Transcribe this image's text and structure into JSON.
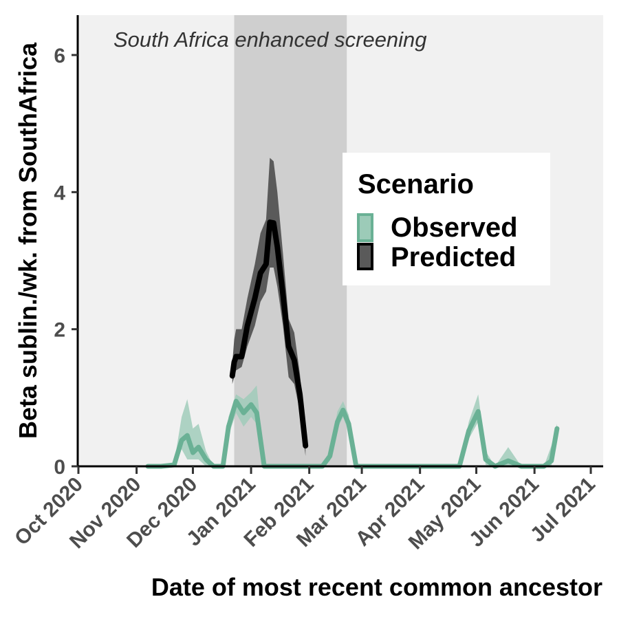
{
  "chart_data": {
    "type": "line",
    "title": "",
    "xlabel": "Date of most recent common ancestor",
    "ylabel": "Beta sublin./wk. from SouthAfrica",
    "x_ticks": [
      "Oct 2020",
      "Nov 2020",
      "Dec 2020",
      "Jan 2021",
      "Feb 2021",
      "Mar 2021",
      "Apr 2021",
      "May 2021",
      "Jun 2021",
      "Jul 2021"
    ],
    "y_ticks": [
      "0",
      "2",
      "4",
      "6"
    ],
    "ylim": [
      0,
      6.6
    ],
    "xlim": [
      "2020-10-01",
      "2021-07-01"
    ],
    "grid": false,
    "legend_placement": "right",
    "annotation": {
      "text": "South Africa enhanced screening",
      "shaded_period": [
        "2020-12-23",
        "2021-02-21"
      ]
    },
    "legend": {
      "title": "Scenario",
      "entries": [
        "Observed",
        "Predicted"
      ]
    },
    "colors": {
      "observed": "#6ab195",
      "predicted": "#000000",
      "predicted_band": "#5a5a5a",
      "panel_bg": "#f1f1f1",
      "shade": "#cfcfcf"
    },
    "series": [
      {
        "name": "Observed",
        "x": [
          "2020-11-07",
          "2020-11-14",
          "2020-11-21",
          "2020-11-25",
          "2020-11-28",
          "2020-12-01",
          "2020-12-04",
          "2020-12-08",
          "2020-12-12",
          "2020-12-17",
          "2020-12-20",
          "2020-12-24",
          "2020-12-28",
          "2021-01-01",
          "2021-01-04",
          "2021-01-08",
          "2021-01-12",
          "2021-01-18",
          "2021-01-24",
          "2021-02-01",
          "2021-02-08",
          "2021-02-12",
          "2021-02-16",
          "2021-02-19",
          "2021-02-22",
          "2021-02-26",
          "2021-03-05",
          "2021-03-15",
          "2021-03-25",
          "2021-04-05",
          "2021-04-15",
          "2021-04-22",
          "2021-04-27",
          "2021-05-02",
          "2021-05-06",
          "2021-05-11",
          "2021-05-18",
          "2021-05-25",
          "2021-06-01",
          "2021-06-06",
          "2021-06-10",
          "2021-06-13"
        ],
        "values": [
          0,
          0,
          0.02,
          0.38,
          0.45,
          0.2,
          0.28,
          0.1,
          0,
          0,
          0.58,
          0.95,
          0.78,
          0.9,
          0.78,
          0,
          0,
          0,
          0,
          0,
          0,
          0.15,
          0.65,
          0.82,
          0.62,
          0,
          0,
          0,
          0,
          0,
          0,
          0,
          0.52,
          0.8,
          0.1,
          0,
          0.08,
          0,
          0,
          0,
          0.08,
          0.55
        ],
        "lower": [
          0,
          0,
          0,
          0.25,
          0.1,
          0.1,
          0.1,
          0,
          0,
          0,
          0.45,
          0.78,
          0.58,
          0.72,
          0.62,
          0,
          0,
          0,
          0,
          0,
          0,
          0.08,
          0.55,
          0.72,
          0.5,
          0,
          0,
          0,
          0,
          0,
          0,
          0,
          0.4,
          0.65,
          0.02,
          0,
          0,
          0,
          0,
          0,
          0,
          0.45
        ],
        "upper": [
          0,
          0,
          0.05,
          0.72,
          0.98,
          0.55,
          0.62,
          0.22,
          0,
          0,
          0.72,
          1.05,
          0.98,
          1.08,
          1.18,
          0,
          0,
          0,
          0,
          0,
          0,
          0.22,
          0.8,
          0.95,
          0.75,
          0,
          0,
          0,
          0,
          0,
          0,
          0,
          0.65,
          1.05,
          0.22,
          0,
          0.28,
          0,
          0,
          0,
          0.3,
          0.62
        ]
      },
      {
        "name": "Predicted",
        "x": [
          "2020-12-22",
          "2020-12-23",
          "2020-12-24",
          "2020-12-27",
          "2020-12-30",
          "2021-01-03",
          "2021-01-06",
          "2021-01-09",
          "2021-01-11",
          "2021-01-13",
          "2021-01-15",
          "2021-01-18",
          "2021-01-21",
          "2021-01-24",
          "2021-01-27",
          "2021-01-30"
        ],
        "values": [
          1.32,
          1.52,
          1.6,
          1.6,
          2.05,
          2.45,
          2.82,
          2.95,
          3.56,
          3.55,
          3.2,
          2.5,
          1.75,
          1.55,
          1.05,
          0.3
        ],
        "lower": [
          1.2,
          1.3,
          1.4,
          1.45,
          1.75,
          2.05,
          2.4,
          2.55,
          2.9,
          2.9,
          2.62,
          2.05,
          1.3,
          1.2,
          0.8,
          0.15
        ],
        "upper": [
          1.5,
          1.85,
          2.0,
          2.0,
          2.45,
          2.95,
          3.4,
          3.6,
          4.5,
          4.45,
          4.0,
          3.1,
          2.15,
          1.95,
          1.35,
          0.45
        ]
      }
    ]
  }
}
